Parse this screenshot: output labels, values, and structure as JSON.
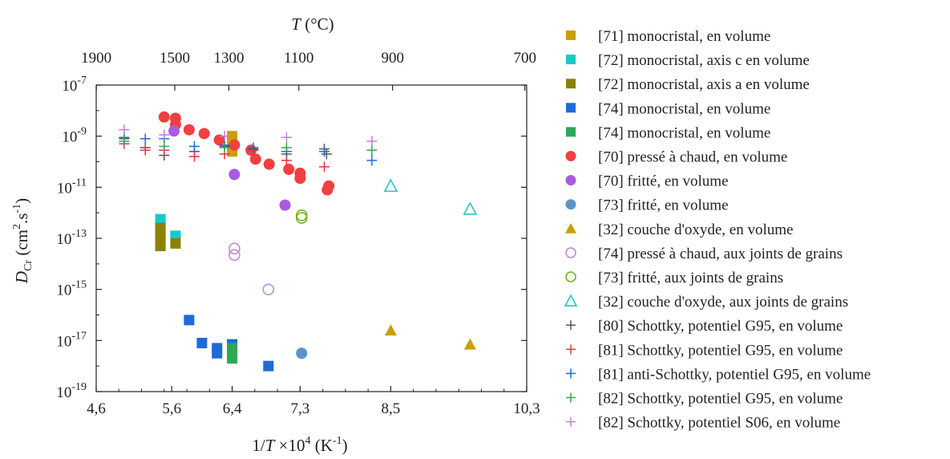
{
  "chart_data": {
    "type": "scatter",
    "top_axis": {
      "title_var": "T",
      "title_unit": " (°C)",
      "ticks": [
        {
          "label": "1900",
          "celsius": 1900
        },
        {
          "label": "1500",
          "celsius": 1500
        },
        {
          "label": "1300",
          "celsius": 1300
        },
        {
          "label": "1100",
          "celsius": 1100
        },
        {
          "label": "900",
          "celsius": 900
        },
        {
          "label": "700",
          "celsius": 700
        }
      ]
    },
    "x_axis": {
      "title_main": "1/",
      "title_var": "T",
      "title_mid": " ×10",
      "title_exp": "4",
      "title_unit": " (K",
      "title_unit_exp": "-1",
      "title_end": ")",
      "range": [
        4.6,
        10.3
      ],
      "ticks": [
        {
          "label": "4,6",
          "value": 4.6
        },
        {
          "label": "5,6",
          "value": 5.6
        },
        {
          "label": "6,4",
          "value": 6.4
        },
        {
          "label": "7,3",
          "value": 7.3
        },
        {
          "label": "8,5",
          "value": 8.5
        },
        {
          "label": "10,3",
          "value": 10.3
        }
      ]
    },
    "y_axis": {
      "title_var": "D",
      "title_sub": "Cr",
      "title_unit_a": " (cm",
      "title_exp_a": "2",
      "title_unit_b": ".s",
      "title_exp_b": "-1",
      "title_end": ")",
      "scale": "log",
      "range_exp": [
        -19,
        -7
      ],
      "ticks": [
        {
          "base": "10",
          "exp": "-7",
          "value_exp": -7
        },
        {
          "base": "10",
          "exp": "-9",
          "value_exp": -9
        },
        {
          "base": "10",
          "exp": "-11",
          "value_exp": -11
        },
        {
          "base": "10",
          "exp": "-13",
          "value_exp": -13
        },
        {
          "base": "10",
          "exp": "-15",
          "value_exp": -15
        },
        {
          "base": "10",
          "exp": "-17",
          "value_exp": -17
        },
        {
          "base": "10",
          "exp": "-19",
          "value_exp": -19
        }
      ]
    },
    "legend_position": "right",
    "series": [
      {
        "name": "[71] monocristal, en volume",
        "marker": "square-filled",
        "color": "#C9A000",
        "points": [
          [
            6.4,
            -9.0
          ],
          [
            6.4,
            -9.4
          ],
          [
            6.4,
            -9.6
          ]
        ]
      },
      {
        "name": "[72] monocristal, axis c en volume",
        "marker": "square-filled",
        "color": "#19C9C9",
        "points": [
          [
            5.45,
            -12.25
          ],
          [
            5.45,
            -12.55
          ],
          [
            5.45,
            -12.8
          ],
          [
            5.65,
            -12.9
          ],
          [
            5.65,
            -13.0
          ]
        ]
      },
      {
        "name": "[72] monocristal, axis a en volume",
        "marker": "square-filled",
        "color": "#8B8200",
        "points": [
          [
            5.45,
            -12.6
          ],
          [
            5.45,
            -12.9
          ],
          [
            5.45,
            -13.1
          ],
          [
            5.45,
            -13.3
          ],
          [
            5.65,
            -13.2
          ]
        ]
      },
      {
        "name": "[74] monocristal, en volume",
        "marker": "square-filled",
        "color": "#1F6BD6",
        "points": [
          [
            5.83,
            -16.2
          ],
          [
            6.0,
            -17.1
          ],
          [
            6.2,
            -17.3
          ],
          [
            6.2,
            -17.5
          ],
          [
            6.4,
            -17.15
          ],
          [
            6.88,
            -18.0
          ]
        ]
      },
      {
        "name": "[74] monocristal, en volume",
        "marker": "square-filled",
        "color": "#2EA855",
        "points": [
          [
            6.4,
            -17.3
          ],
          [
            6.4,
            -17.5
          ],
          [
            6.4,
            -17.7
          ]
        ]
      },
      {
        "name": "[70] pressé à chaud, en volume",
        "marker": "circle-filled",
        "color": "#F04040",
        "points": [
          [
            5.5,
            -8.25
          ],
          [
            5.65,
            -8.3
          ],
          [
            5.65,
            -8.55
          ],
          [
            5.83,
            -8.75
          ],
          [
            6.03,
            -8.9
          ],
          [
            6.23,
            -9.15
          ],
          [
            6.43,
            -9.35
          ],
          [
            6.65,
            -9.55
          ],
          [
            6.71,
            -9.9
          ],
          [
            6.89,
            -10.1
          ],
          [
            7.15,
            -10.3
          ],
          [
            7.3,
            -10.45
          ],
          [
            7.3,
            -10.65
          ],
          [
            7.66,
            -11.1
          ],
          [
            7.68,
            -10.95
          ]
        ]
      },
      {
        "name": "[70] fritté, en volume",
        "marker": "circle-filled",
        "color": "#A85AE0",
        "points": [
          [
            5.63,
            -8.8
          ],
          [
            6.43,
            -10.5
          ],
          [
            7.1,
            -11.7
          ]
        ]
      },
      {
        "name": "[73] fritté, en volume",
        "marker": "circle-filled",
        "color": "#5B93C9",
        "points": [
          [
            7.32,
            -17.5
          ]
        ]
      },
      {
        "name": "[32] couche d'oxyde, en volume",
        "marker": "triangle-filled",
        "color": "#C9A000",
        "points": [
          [
            8.5,
            -16.6
          ],
          [
            9.55,
            -17.15
          ]
        ]
      },
      {
        "name": "[74] pressé à chaud, aux joints de grains",
        "marker": "circle-open",
        "color": "#C08AD6",
        "points": [
          [
            6.43,
            -13.4
          ],
          [
            6.43,
            -13.65
          ],
          [
            6.88,
            -15.0
          ]
        ]
      },
      {
        "name": "[73] fritté, aux joints de grains",
        "marker": "circle-open",
        "color": "#6FB51F",
        "points": [
          [
            7.32,
            -12.1
          ],
          [
            7.32,
            -12.2
          ]
        ]
      },
      {
        "name": "[32] couche d'oxyde, aux joints de grains",
        "marker": "triangle-open",
        "color": "#2EC4C4",
        "points": [
          [
            8.5,
            -10.95
          ],
          [
            9.55,
            -11.85
          ]
        ]
      },
      {
        "name": "[80] Schottky, potentiel G95, en volume",
        "marker": "plus",
        "color": "#555555",
        "points": [
          [
            4.97,
            -9.1
          ],
          [
            5.25,
            -9.45
          ],
          [
            5.5,
            -9.75
          ],
          [
            5.9,
            -9.6
          ],
          [
            6.3,
            -9.4
          ],
          [
            6.68,
            -9.5
          ],
          [
            7.12,
            -9.7
          ],
          [
            7.62,
            -9.5
          ],
          [
            7.65,
            -9.7
          ]
        ]
      },
      {
        "name": "[81] Schottky, potentiel G95, en volume",
        "marker": "plus",
        "color": "#E8333A",
        "points": [
          [
            4.97,
            -9.3
          ],
          [
            5.25,
            -9.55
          ],
          [
            5.5,
            -9.55
          ],
          [
            5.9,
            -9.8
          ],
          [
            6.3,
            -9.7
          ],
          [
            6.68,
            -9.55
          ],
          [
            7.12,
            -9.95
          ],
          [
            7.62,
            -10.2
          ]
        ]
      },
      {
        "name": "[81] anti-Schottky, potentiel G95, en volume",
        "marker": "plus",
        "color": "#1F6BD6",
        "points": [
          [
            4.97,
            -9.05
          ],
          [
            5.25,
            -9.1
          ],
          [
            5.5,
            -9.1
          ],
          [
            5.9,
            -9.4
          ],
          [
            6.3,
            -9.35
          ],
          [
            6.68,
            -9.45
          ],
          [
            7.12,
            -9.6
          ],
          [
            7.62,
            -9.6
          ],
          [
            8.25,
            -9.95
          ]
        ]
      },
      {
        "name": "[82] Schottky, potentiel G95, en volume",
        "marker": "plus",
        "color": "#2EA855",
        "points": [
          [
            4.97,
            -9.2
          ],
          [
            5.5,
            -9.4
          ],
          [
            6.3,
            -9.45
          ],
          [
            7.12,
            -9.45
          ],
          [
            8.25,
            -9.55
          ]
        ]
      },
      {
        "name": "[82] Schottky, potentiel S06, en volume",
        "marker": "plus",
        "color": "#C77BD6",
        "points": [
          [
            4.97,
            -8.75
          ],
          [
            5.5,
            -8.95
          ],
          [
            6.3,
            -9.0
          ],
          [
            7.12,
            -9.05
          ],
          [
            8.25,
            -9.2
          ]
        ]
      }
    ]
  }
}
